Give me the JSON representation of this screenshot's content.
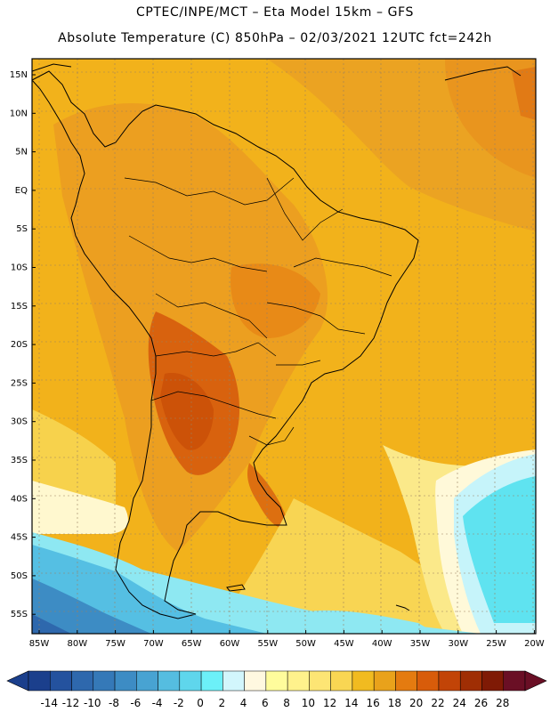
{
  "header": {
    "line1": "CPTEC/INPE/MCT –  Eta Model 15km – GFS",
    "line2": "Absolute Temperature (C) 850hPa – 02/03/2021 12UTC fct=242h"
  },
  "map": {
    "lat_labels": [
      "15N",
      "10N",
      "5N",
      "EQ",
      "5S",
      "10S",
      "15S",
      "20S",
      "25S",
      "30S",
      "35S",
      "40S",
      "45S",
      "50S",
      "55S"
    ],
    "lon_labels": [
      "85W",
      "80W",
      "75W",
      "70W",
      "65W",
      "60W",
      "55W",
      "50W",
      "45W",
      "40W",
      "35W",
      "30W",
      "25W",
      "20W"
    ],
    "background_color": "#f2b21b"
  },
  "colorbar": {
    "labels": [
      "-14",
      "-12",
      "-10",
      "-8",
      "-6",
      "-4",
      "-2",
      "0",
      "2",
      "4",
      "6",
      "8",
      "10",
      "12",
      "14",
      "16",
      "18",
      "20",
      "22",
      "24",
      "26",
      "28"
    ],
    "colors": [
      "#1b3f8c",
      "#24529e",
      "#2e68ad",
      "#3579b8",
      "#3d8cc4",
      "#48a3d2",
      "#55bde0",
      "#5fd6ec",
      "#6cf0f8",
      "#d2f6fc",
      "#fff8e0",
      "#fffc9c",
      "#fff28c",
      "#fde574",
      "#f9d653",
      "#f1bb20",
      "#e9a21b",
      "#e47b10",
      "#d85c0a",
      "#c24407",
      "#9f2e04",
      "#7f1a05",
      "#6a0f25"
    ]
  }
}
